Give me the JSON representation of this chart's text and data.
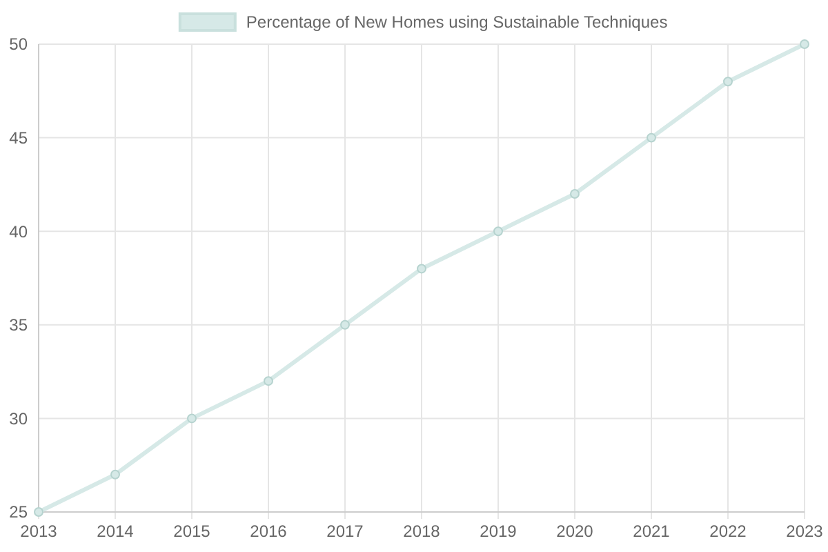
{
  "chart_data": {
    "type": "line",
    "categories": [
      "2013",
      "2014",
      "2015",
      "2016",
      "2017",
      "2018",
      "2019",
      "2020",
      "2021",
      "2022",
      "2023"
    ],
    "series": [
      {
        "name": "Percentage of New Homes using Sustainable Techniques",
        "color": "#d6e9e7",
        "values": [
          25,
          27,
          30,
          32,
          35,
          38,
          40,
          42,
          45,
          48,
          50
        ]
      }
    ],
    "ylim": [
      25,
      50
    ],
    "yticks": [
      25,
      30,
      35,
      40,
      45,
      50
    ],
    "grid": true,
    "legend": "top",
    "marker": "circle"
  }
}
